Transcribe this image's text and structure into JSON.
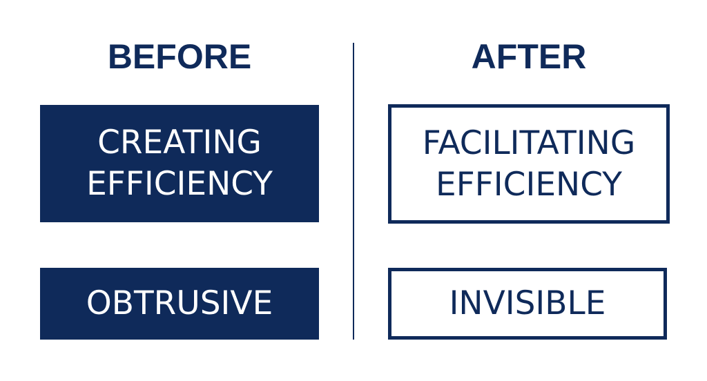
{
  "headings": {
    "before": "BEFORE",
    "after": "AFTER"
  },
  "before_column": {
    "box1": {
      "line1": "CREATING",
      "line2": "EFFICIENCY"
    },
    "box2": {
      "label": "OBTRUSIVE"
    }
  },
  "after_column": {
    "box1": {
      "line1": "FACILITATING",
      "line2": "EFFICIENCY"
    },
    "box2": {
      "label": "INVISIBLE"
    }
  },
  "colors": {
    "navy": "#0f2a5a",
    "background": "#ffffff",
    "filled_text": "#ffffff"
  }
}
